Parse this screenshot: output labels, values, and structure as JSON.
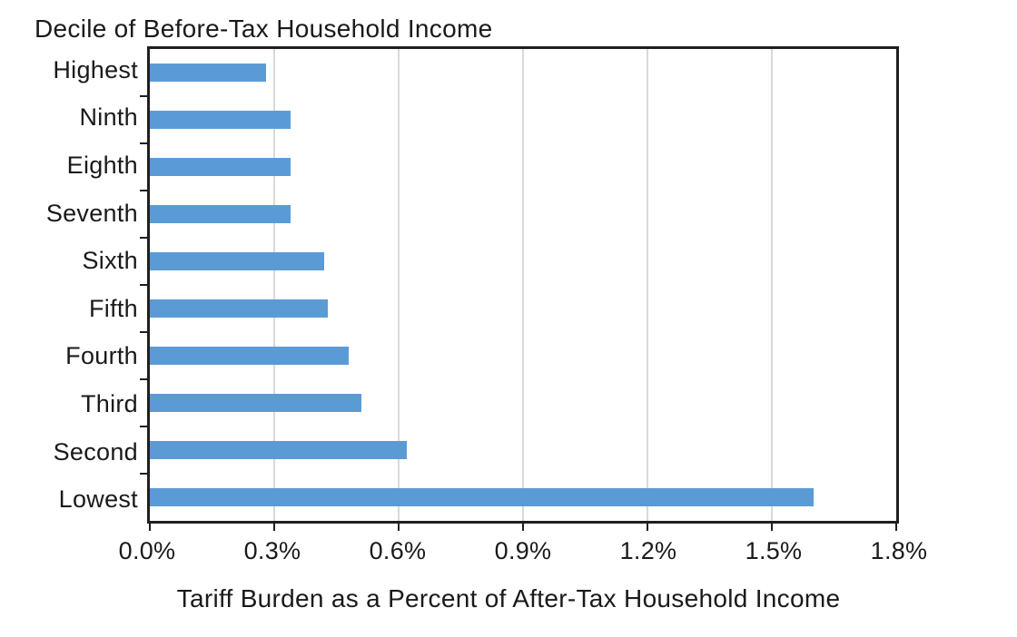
{
  "chart_data": {
    "type": "bar",
    "orientation": "horizontal",
    "title": "Decile of Before-Tax Household Income",
    "xlabel": "Tariff Burden as a Percent of After-Tax Household Income",
    "ylabel": "",
    "categories": [
      "Highest",
      "Ninth",
      "Eighth",
      "Seventh",
      "Sixth",
      "Fifth",
      "Fourth",
      "Third",
      "Second",
      "Lowest"
    ],
    "values": [
      0.28,
      0.34,
      0.34,
      0.34,
      0.42,
      0.43,
      0.48,
      0.51,
      0.62,
      1.6
    ],
    "unit": "percent",
    "xlim": [
      0,
      1.8
    ],
    "x_tick_labels": [
      "0.0%",
      "0.3%",
      "0.6%",
      "0.9%",
      "1.2%",
      "1.5%",
      "1.8%"
    ],
    "x_tick_values": [
      0,
      0.3,
      0.6,
      0.9,
      1.2,
      1.5,
      1.8
    ],
    "grid": true,
    "legend_position": "none",
    "colors": {
      "bar": "#5b9bd5",
      "gridline": "#d9d9d9",
      "axis": "#1f1f1f",
      "text": "#1a1a1a",
      "background": "#ffffff"
    }
  }
}
